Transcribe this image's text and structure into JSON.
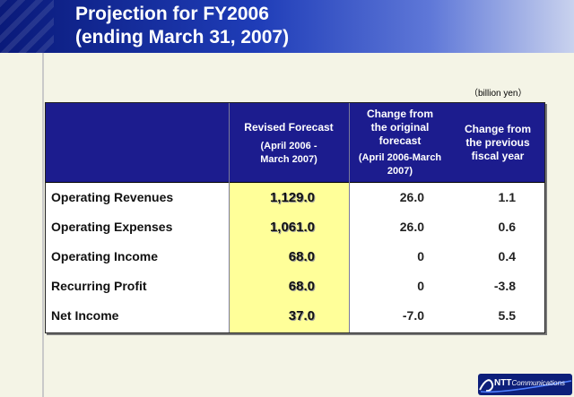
{
  "title": {
    "line1": "Projection for FY2006",
    "line2": "(ending March 31, 2007)"
  },
  "unit": "（billion yen）",
  "table": {
    "headers": {
      "revised": {
        "main": "Revised Forecast",
        "sub": "(April 2006 -March 2007)"
      },
      "change_original": {
        "main": "Change from the original forecast",
        "sub": "(April 2006-March 2007)"
      },
      "change_previous": {
        "main": "Change from the previous fiscal year"
      }
    },
    "rows": [
      {
        "label": "Operating Revenues",
        "revised": "1,129.0",
        "change_original": "26.0",
        "change_previous": "1.1"
      },
      {
        "label": "Operating Expenses",
        "revised": "1,061.0",
        "change_original": "26.0",
        "change_previous": "0.6"
      },
      {
        "label": "Operating Income",
        "revised": "68.0",
        "change_original": "0",
        "change_previous": "0.4"
      },
      {
        "label": "Recurring Profit",
        "revised": "68.0",
        "change_original": "0",
        "change_previous": "-3.8"
      },
      {
        "label": "Net Income",
        "revised": "37.0",
        "change_original": "-7.0",
        "change_previous": "5.5"
      }
    ]
  },
  "logo": {
    "brand": "NTT",
    "name": "Communications"
  },
  "colors": {
    "header_dark": "#0a1a7a",
    "table_header": "#1c1c8e",
    "highlight": "#ffff99",
    "background": "#f4f4e6"
  }
}
